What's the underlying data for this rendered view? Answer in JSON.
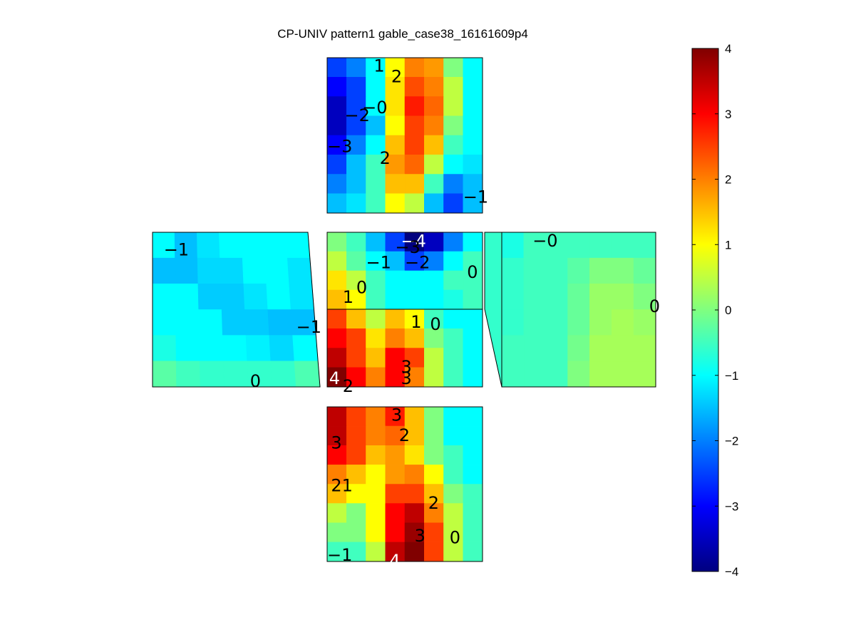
{
  "chart_data": {
    "type": "heatmap",
    "title": "CP-UNIV pattern1 gable_case38_16161609p4",
    "colormap": "jet",
    "clim": [
      -4,
      4
    ],
    "colorbar": {
      "placement": "right",
      "ticks": [
        "4",
        "3",
        "2",
        "1",
        "0",
        "−1",
        "−2",
        "−3",
        "−4"
      ]
    },
    "panels": [
      {
        "name": "top",
        "rows": 8,
        "cols": 8,
        "values": [
          [
            -2.5,
            -2.0,
            -1.0,
            1.0,
            2.0,
            1.8,
            0.0,
            -1.0
          ],
          [
            -3.0,
            -2.5,
            -1.0,
            1.2,
            2.4,
            2.0,
            0.5,
            -1.0
          ],
          [
            -3.5,
            -2.5,
            -1.0,
            1.2,
            2.8,
            2.2,
            0.5,
            -1.0
          ],
          [
            -3.5,
            -2.5,
            -1.5,
            1.0,
            2.5,
            2.0,
            0.0,
            -1.0
          ],
          [
            -3.0,
            -2.0,
            -1.0,
            1.5,
            2.5,
            1.5,
            -0.5,
            -1.0
          ],
          [
            -2.5,
            -1.5,
            -0.5,
            1.8,
            2.2,
            0.5,
            -1.0,
            -1.2
          ],
          [
            -2.0,
            -1.5,
            -0.5,
            1.5,
            1.5,
            -0.5,
            -2.0,
            -1.5
          ],
          [
            -1.5,
            -1.2,
            -0.5,
            1.0,
            0.5,
            -1.5,
            -2.5,
            -1.5
          ]
        ],
        "labels": [
          {
            "text": "1",
            "c": 2.4,
            "r": 0.05
          },
          {
            "text": "2",
            "c": 3.3,
            "r": 0.6
          },
          {
            "text": "−0",
            "c": 1.8,
            "r": 2.2
          },
          {
            "text": "−2",
            "c": 0.9,
            "r": 2.6
          },
          {
            "text": "−3",
            "c": 0.0,
            "r": 4.2
          },
          {
            "text": "2",
            "c": 2.7,
            "r": 4.8
          },
          {
            "text": "−1",
            "c": 7.0,
            "r": 6.8
          }
        ]
      },
      {
        "name": "left",
        "rows": 6,
        "cols": 7,
        "values": [
          [
            -1.0,
            -1.5,
            -1.2,
            -1.0,
            -1.0,
            -1.0,
            -1.0
          ],
          [
            -1.5,
            -1.5,
            -1.3,
            -1.3,
            -1.0,
            -1.0,
            -1.2
          ],
          [
            -1.0,
            -1.0,
            -1.4,
            -1.4,
            -1.2,
            -1.0,
            -1.2
          ],
          [
            -1.0,
            -1.0,
            -1.0,
            -1.4,
            -1.4,
            -1.5,
            -1.5
          ],
          [
            -0.8,
            -1.0,
            -1.0,
            -1.0,
            -1.1,
            -1.3,
            -1.0
          ],
          [
            -0.3,
            -0.5,
            -0.6,
            -0.6,
            -0.6,
            -0.6,
            -0.4
          ]
        ],
        "labels": [
          {
            "text": "−1",
            "c": 0.5,
            "r": 0.4
          },
          {
            "text": "−1",
            "c": 6.2,
            "r": 3.4
          },
          {
            "text": "0",
            "c": 4.1,
            "r": 5.5
          }
        ]
      },
      {
        "name": "center-upper",
        "rows": 4,
        "cols": 8,
        "values": [
          [
            0.0,
            -0.5,
            -1.5,
            -2.5,
            -4.0,
            -3.5,
            -2.0,
            -1.0
          ],
          [
            0.5,
            -0.3,
            -1.0,
            -1.5,
            -2.5,
            -2.0,
            -1.0,
            -0.5
          ],
          [
            1.2,
            0.5,
            -0.5,
            -1.0,
            -1.0,
            -1.0,
            -0.5,
            -0.5
          ],
          [
            1.5,
            1.0,
            -0.5,
            -1.0,
            -1.0,
            -1.0,
            -0.8,
            -0.5
          ]
        ],
        "labels": [
          {
            "text": "−4",
            "c": 3.8,
            "r": 0.1
          },
          {
            "text": "−3",
            "c": 3.5,
            "r": 0.4
          },
          {
            "text": "−1",
            "c": 2.0,
            "r": 1.2
          },
          {
            "text": "−2",
            "c": 4.0,
            "r": 1.2
          },
          {
            "text": "0",
            "c": 7.2,
            "r": 1.7
          },
          {
            "text": "0",
            "c": 1.5,
            "r": 2.5
          },
          {
            "text": "1",
            "c": 0.8,
            "r": 3.0
          }
        ]
      },
      {
        "name": "center-lower",
        "rows": 4,
        "cols": 8,
        "values": [
          [
            2.5,
            1.5,
            0.5,
            1.5,
            1.0,
            -0.5,
            -1.0,
            -1.0
          ],
          [
            3.0,
            2.5,
            1.2,
            2.0,
            1.5,
            0.0,
            -0.5,
            -1.0
          ],
          [
            3.5,
            2.5,
            1.5,
            3.0,
            2.5,
            0.5,
            -0.5,
            -1.0
          ],
          [
            4.2,
            3.0,
            2.0,
            3.0,
            2.0,
            0.5,
            -0.5,
            -1.0
          ]
        ],
        "labels": [
          {
            "text": "1",
            "c": 4.3,
            "r": 0.3
          },
          {
            "text": "0",
            "c": 5.3,
            "r": 0.4
          },
          {
            "text": "3",
            "c": 3.8,
            "r": 2.6
          },
          {
            "text": "3",
            "c": 3.8,
            "r": 3.2
          },
          {
            "text": "2",
            "c": 0.8,
            "r": 3.6
          },
          {
            "text": "4",
            "c": 0.1,
            "r": 3.2
          }
        ]
      },
      {
        "name": "right",
        "rows": 6,
        "cols": 7,
        "values": [
          [
            -0.8,
            -0.5,
            -0.5,
            -0.5,
            -0.5,
            -0.5,
            -0.5
          ],
          [
            -0.6,
            -0.5,
            -0.5,
            -0.3,
            0.0,
            0.0,
            -0.2
          ],
          [
            -0.6,
            -0.5,
            -0.5,
            -0.2,
            0.2,
            0.2,
            0.0
          ],
          [
            -0.6,
            -0.5,
            -0.5,
            -0.2,
            0.2,
            0.3,
            0.2
          ],
          [
            -0.5,
            -0.5,
            -0.5,
            -0.1,
            0.3,
            0.3,
            0.3
          ],
          [
            -0.5,
            -0.5,
            -0.5,
            0.0,
            0.3,
            0.3,
            0.3
          ]
        ],
        "labels": [
          {
            "text": "−0",
            "c": 1.4,
            "r": 0.05
          },
          {
            "text": "0",
            "c": 6.7,
            "r": 2.6
          }
        ]
      },
      {
        "name": "bottom",
        "rows": 8,
        "cols": 8,
        "values": [
          [
            3.5,
            2.5,
            2.0,
            2.8,
            1.5,
            0.0,
            -1.0,
            -1.0
          ],
          [
            3.5,
            2.5,
            2.0,
            2.2,
            1.5,
            0.0,
            -1.0,
            -1.0
          ],
          [
            3.0,
            2.5,
            1.5,
            1.8,
            1.2,
            0.0,
            -0.5,
            -1.0
          ],
          [
            2.0,
            1.5,
            1.0,
            1.8,
            2.0,
            1.0,
            -0.5,
            -1.0
          ],
          [
            1.5,
            1.0,
            1.0,
            2.5,
            2.5,
            1.5,
            0.0,
            -0.5
          ],
          [
            0.5,
            0.0,
            1.0,
            3.0,
            3.5,
            2.0,
            0.5,
            -0.5
          ],
          [
            0.0,
            0.0,
            1.0,
            3.0,
            3.8,
            2.5,
            0.5,
            -0.5
          ],
          [
            -0.5,
            -0.5,
            0.5,
            3.5,
            4.0,
            2.5,
            0.5,
            -0.5
          ]
        ],
        "labels": [
          {
            "text": "3",
            "c": 3.3,
            "r": 0.05
          },
          {
            "text": "2",
            "c": 3.7,
            "r": 1.1
          },
          {
            "text": "3",
            "c": 0.2,
            "r": 1.5
          },
          {
            "text": "21",
            "c": 0.2,
            "r": 3.7
          },
          {
            "text": "2",
            "c": 5.2,
            "r": 4.6
          },
          {
            "text": "3",
            "c": 4.5,
            "r": 6.3
          },
          {
            "text": "0",
            "c": 6.3,
            "r": 6.4
          },
          {
            "text": "−1",
            "c": 0.0,
            "r": 7.3
          },
          {
            "text": "4",
            "c": 3.2,
            "r": 7.6
          }
        ]
      }
    ]
  }
}
